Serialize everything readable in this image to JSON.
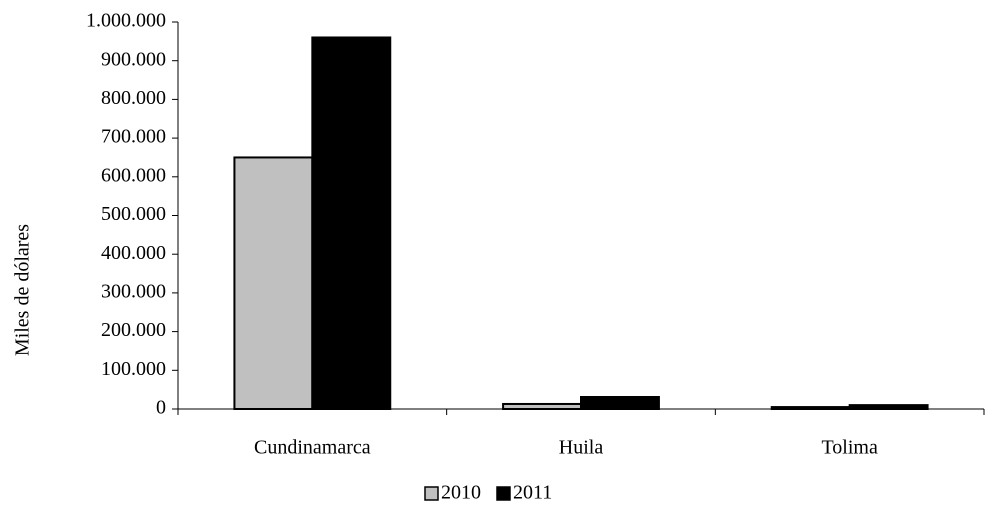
{
  "chart_data": {
    "type": "bar",
    "y_label": "Miles de dólares",
    "categories": [
      "Cundinamarca",
      "Huila",
      "Tolima"
    ],
    "series": [
      {
        "name": "2010",
        "color": "#c0c0c0",
        "values": [
          650000,
          13000,
          5000
        ]
      },
      {
        "name": "2011",
        "color": "#000000",
        "values": [
          960000,
          31000,
          10000
        ]
      }
    ],
    "ylim": [
      0,
      1000000
    ],
    "yticks": [
      0,
      {
        "value": 100000,
        "label": "100.000"
      },
      {
        "value": 200000,
        "label": "200.000"
      },
      {
        "value": 300000,
        "label": "300.000"
      },
      {
        "value": 400000,
        "label": "400.000"
      },
      {
        "value": 500000,
        "label": "500.000"
      },
      {
        "value": 600000,
        "label": "600.000"
      },
      {
        "value": 700000,
        "label": "700.000"
      },
      {
        "value": 800000,
        "label": "800.000"
      },
      {
        "value": 900000,
        "label": "900.000"
      },
      {
        "value": 1000000,
        "label": "1.000.000"
      }
    ],
    "legend": "bottom",
    "grid": false
  }
}
